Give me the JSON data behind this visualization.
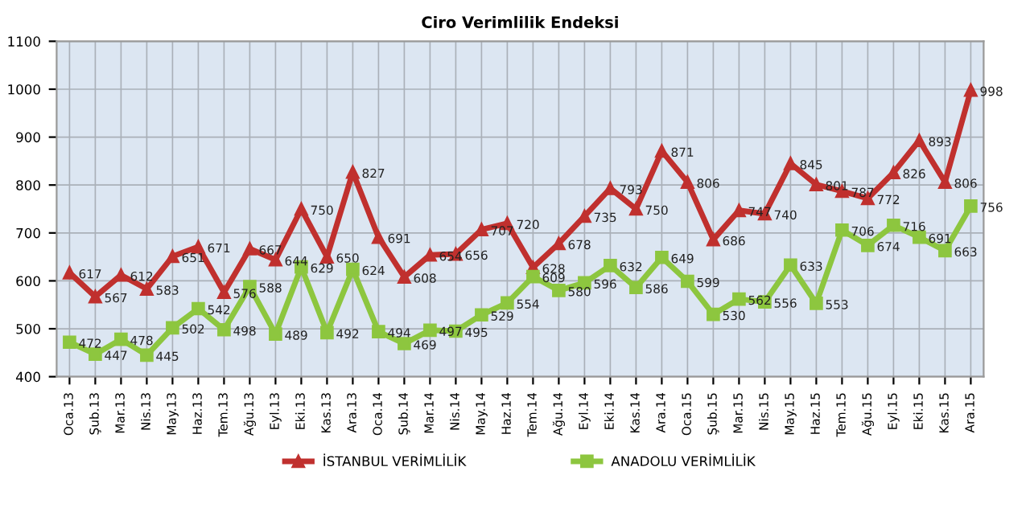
{
  "chart_data": {
    "type": "line",
    "title": "Ciro Verimlilik Endeksi",
    "categories": [
      "Oca.13",
      "Şub.13",
      "Mar.13",
      "Nis.13",
      "May.13",
      "Haz.13",
      "Tem.13",
      "Ağu.13",
      "Eyl.13",
      "Eki.13",
      "Kas.13",
      "Ara.13",
      "Oca.14",
      "Şub.14",
      "Mar.14",
      "Nis.14",
      "May.14",
      "Haz.14",
      "Tem.14",
      "Ağu.14",
      "Eyl.14",
      "Eki.14",
      "Kas.14",
      "Ara.14",
      "Oca.15",
      "Şub.15",
      "Mar.15",
      "Nis.15",
      "May.15",
      "Haz.15",
      "Tem.15",
      "Ağu.15",
      "Eyl.15",
      "Eki.15",
      "Kas.15",
      "Ara.15"
    ],
    "series": [
      {
        "name": "İSTANBUL VERİMLİLİK",
        "color": "#c0302e",
        "marker": "triangle",
        "values": [
          617,
          567,
          612,
          583,
          651,
          671,
          576,
          667,
          644,
          750,
          650,
          827,
          691,
          608,
          654,
          656,
          707,
          720,
          628,
          678,
          735,
          793,
          750,
          871,
          806,
          686,
          747,
          740,
          845,
          801,
          787,
          772,
          826,
          893,
          806,
          998
        ]
      },
      {
        "name": "ANADOLU VERİMLİLİK",
        "color": "#8dc63f",
        "marker": "square",
        "values": [
          472,
          447,
          478,
          445,
          502,
          542,
          498,
          588,
          489,
          629,
          492,
          624,
          494,
          469,
          497,
          495,
          529,
          554,
          609,
          580,
          596,
          632,
          586,
          649,
          599,
          530,
          562,
          556,
          633,
          553,
          706,
          674,
          716,
          691,
          663,
          756
        ]
      }
    ],
    "ylim": [
      400,
      1100
    ],
    "yticks": [
      400,
      500,
      600,
      700,
      800,
      900,
      1000,
      1100
    ],
    "grid": true,
    "legend": "bottom",
    "data_labels": true
  }
}
